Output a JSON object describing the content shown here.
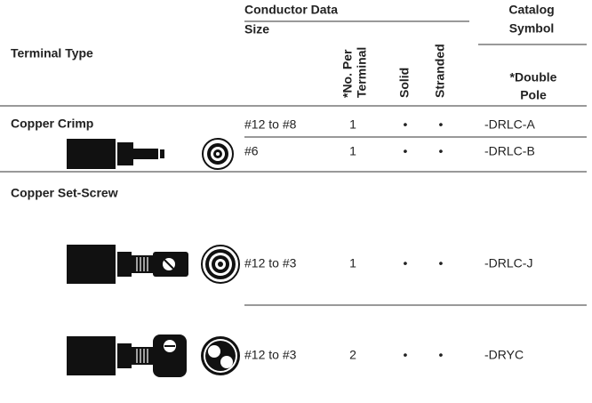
{
  "header": {
    "terminal_type": "Terminal Type",
    "conductor_data": "Conductor Data",
    "size": "Size",
    "no_per_terminal": [
      "*No. Per",
      "Terminal"
    ],
    "solid": "Solid",
    "stranded": "Stranded",
    "catalog_symbol": [
      "Catalog",
      "Symbol"
    ],
    "double_pole": [
      "*Double",
      "Pole"
    ]
  },
  "groups": [
    {
      "title": "Copper Crimp",
      "rows": [
        [
          "#12 to #8",
          1,
          "•",
          "•",
          "-DRLC-A"
        ],
        [
          "#6",
          1,
          "•",
          "•",
          "-DRLC-B"
        ]
      ]
    },
    {
      "title": "Copper Set-Screw",
      "rows": [
        [
          "#12 to #3",
          1,
          "•",
          "•",
          "-DRLC-J"
        ],
        [
          "#12 to #3",
          2,
          "•",
          "•",
          "-DRYC"
        ]
      ]
    }
  ]
}
